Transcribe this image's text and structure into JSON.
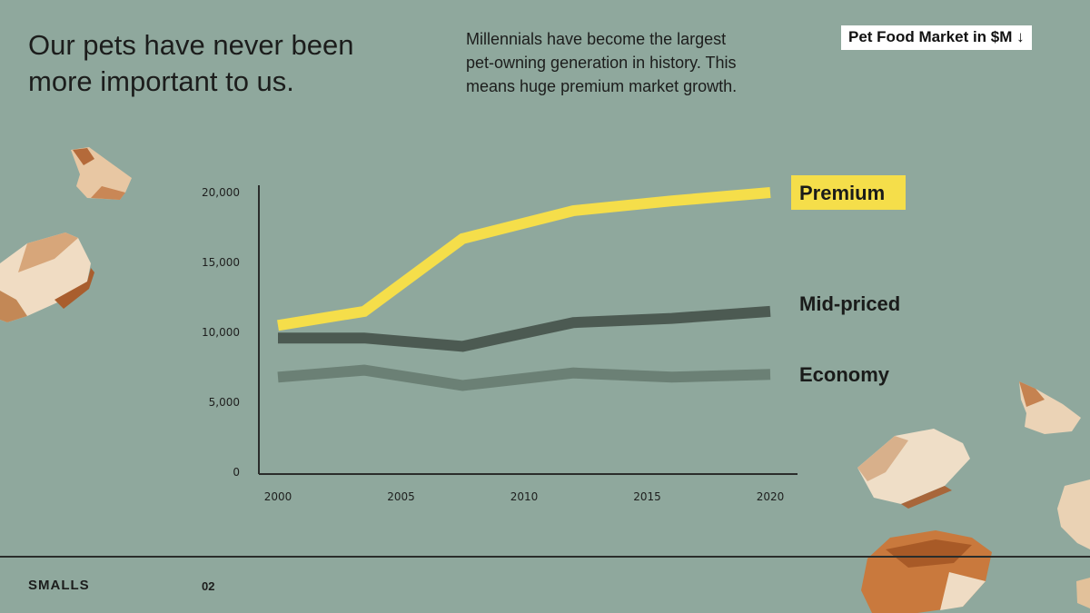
{
  "slide": {
    "headline": "Our pets have never been\nmore important to us.",
    "subtext": "Millennials have become the largest\npet-owning generation in history. This\nmeans huge premium market growth.",
    "badge": "Pet Food Market in $M",
    "badge_icon": "arrow-down-icon"
  },
  "footer": {
    "brand": "SMALLS",
    "page": "02"
  },
  "colors": {
    "background": "#8fa89d",
    "premium": "#f5de4a",
    "mid_priced": "#4c5a52",
    "economy": "#6b8075",
    "label_highlight": "#f5de4a"
  },
  "chart_data": {
    "type": "line",
    "title": "",
    "xlabel": "",
    "ylabel": "",
    "x_ticks": [
      "2000",
      "2005",
      "2010",
      "2015",
      "2020"
    ],
    "y_ticks": [
      "0",
      "5,000",
      "10,000",
      "15,000",
      "20,000"
    ],
    "xlim": [
      2000,
      2020
    ],
    "ylim": [
      0,
      20000
    ],
    "grid": false,
    "legend": "direct labels at right",
    "series": [
      {
        "name": "Premium",
        "key": "premium",
        "x": [
          2000,
          2003.5,
          2007.5,
          2012,
          2016,
          2020
        ],
        "y": [
          10500,
          11500,
          16700,
          18700,
          19400,
          20000
        ]
      },
      {
        "name": "Mid-priced",
        "key": "mid_priced",
        "x": [
          2000,
          2003.5,
          2007.5,
          2012,
          2016,
          2020
        ],
        "y": [
          9600,
          9600,
          9000,
          10700,
          11000,
          11500
        ]
      },
      {
        "name": "Economy",
        "key": "economy",
        "x": [
          2000,
          2003.5,
          2007.5,
          2012,
          2016,
          2020
        ],
        "y": [
          6800,
          7300,
          6200,
          7100,
          6800,
          7000
        ]
      }
    ]
  }
}
